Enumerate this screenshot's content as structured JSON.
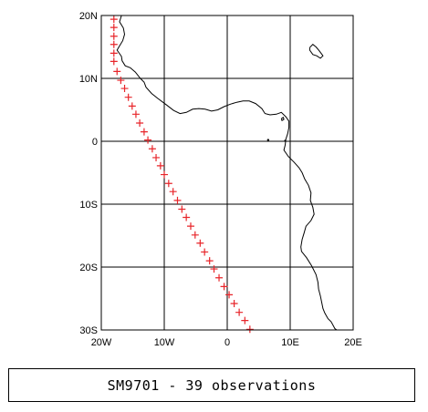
{
  "map": {
    "lon_range": [
      -20,
      20
    ],
    "lat_range": [
      -30,
      20
    ],
    "grid": true,
    "x_ticks": [
      {
        "value": -20,
        "label": "20W"
      },
      {
        "value": -10,
        "label": "10W"
      },
      {
        "value": 0,
        "label": "0"
      },
      {
        "value": 10,
        "label": "10E"
      },
      {
        "value": 20,
        "label": "20E"
      }
    ],
    "y_ticks": [
      {
        "value": 20,
        "label": "20N"
      },
      {
        "value": 10,
        "label": "10N"
      },
      {
        "value": 0,
        "label": "0"
      },
      {
        "value": -10,
        "label": "10S"
      },
      {
        "value": -20,
        "label": "20S"
      },
      {
        "value": -30,
        "label": "30S"
      }
    ],
    "marker_symbol": "+",
    "marker_color": "#e8252a",
    "coastline_color": "#000000",
    "observations": [
      {
        "lon": -18.0,
        "lat": 19.4
      },
      {
        "lon": -18.0,
        "lat": 18.1
      },
      {
        "lon": -18.0,
        "lat": 16.7
      },
      {
        "lon": -18.0,
        "lat": 15.4
      },
      {
        "lon": -18.0,
        "lat": 14.0
      },
      {
        "lon": -18.0,
        "lat": 12.7
      },
      {
        "lon": -17.5,
        "lat": 11.1
      },
      {
        "lon": -16.9,
        "lat": 9.7
      },
      {
        "lon": -16.3,
        "lat": 8.4
      },
      {
        "lon": -15.7,
        "lat": 7.0
      },
      {
        "lon": -15.1,
        "lat": 5.6
      },
      {
        "lon": -14.5,
        "lat": 4.3
      },
      {
        "lon": -13.9,
        "lat": 2.9
      },
      {
        "lon": -13.2,
        "lat": 1.5
      },
      {
        "lon": -12.6,
        "lat": 0.2
      },
      {
        "lon": -11.9,
        "lat": -1.2
      },
      {
        "lon": -11.3,
        "lat": -2.6
      },
      {
        "lon": -10.6,
        "lat": -3.9
      },
      {
        "lon": -10.0,
        "lat": -5.3
      },
      {
        "lon": -9.3,
        "lat": -6.7
      },
      {
        "lon": -8.6,
        "lat": -8.0
      },
      {
        "lon": -7.9,
        "lat": -9.4
      },
      {
        "lon": -7.2,
        "lat": -10.8
      },
      {
        "lon": -6.5,
        "lat": -12.1
      },
      {
        "lon": -5.8,
        "lat": -13.5
      },
      {
        "lon": -5.1,
        "lat": -14.9
      },
      {
        "lon": -4.3,
        "lat": -16.2
      },
      {
        "lon": -3.6,
        "lat": -17.6
      },
      {
        "lon": -2.8,
        "lat": -19.0
      },
      {
        "lon": -2.1,
        "lat": -20.3
      },
      {
        "lon": -1.3,
        "lat": -21.7
      },
      {
        "lon": -0.5,
        "lat": -23.1
      },
      {
        "lon": 0.3,
        "lat": -24.4
      },
      {
        "lon": 1.1,
        "lat": -25.8
      },
      {
        "lon": 1.9,
        "lat": -27.2
      },
      {
        "lon": 2.8,
        "lat": -28.5
      },
      {
        "lon": 3.6,
        "lat": -29.9
      }
    ]
  },
  "caption": "SM9701 - 39 observations"
}
